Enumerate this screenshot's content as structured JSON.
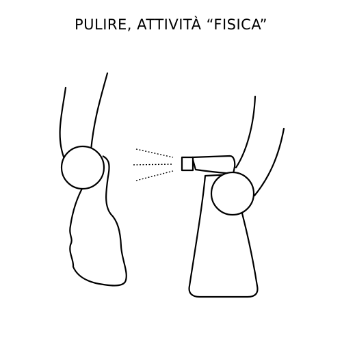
{
  "title": "PULIRE, ATTIVITÀ “FISICA”"
}
